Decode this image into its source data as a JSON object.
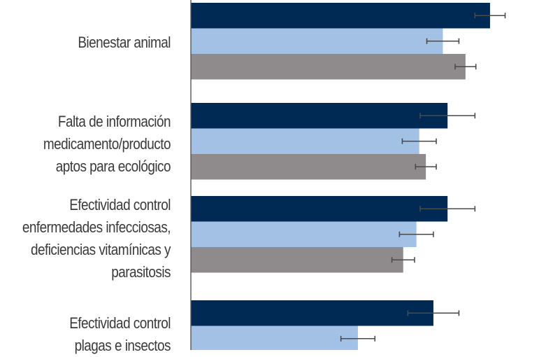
{
  "chart_data": {
    "type": "bar",
    "orientation": "horizontal",
    "categories": [
      [
        "Bienestar animal"
      ],
      [
        "Falta de información",
        "medicamento/producto",
        "aptos para ecológico"
      ],
      [
        "Efectividad control",
        "enfermedades infecciosas,",
        "deficiencias vitamínicas y",
        "parasitosis"
      ],
      [
        "Efectividad control",
        "plagas e insectos"
      ]
    ],
    "series": [
      {
        "color": "#002a54",
        "values": [
          4.5,
          4.05,
          4.05,
          3.9
        ],
        "errors": [
          0.16,
          0.29,
          0.29,
          0.27
        ]
      },
      {
        "color": "#a3c1e5",
        "values": [
          4.0,
          3.75,
          3.72,
          3.1
        ],
        "errors": [
          0.17,
          0.18,
          0.18,
          0.18
        ]
      },
      {
        "color": "#8f8b8c",
        "values": [
          4.24,
          3.82,
          3.58,
          null
        ],
        "errors": [
          0.11,
          0.11,
          0.12,
          null
        ]
      }
    ],
    "xlim": [
      1.33,
      5.0
    ],
    "grid": false,
    "legend": "none"
  }
}
